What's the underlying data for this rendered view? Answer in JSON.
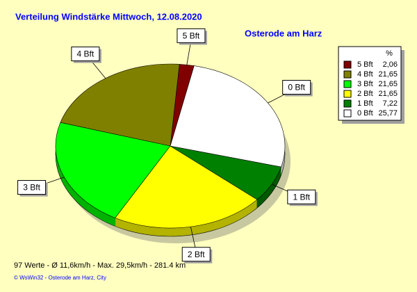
{
  "chart_data": {
    "type": "pie",
    "title": "Verteilung Windstärke  Mittwoch, 12.08.2020",
    "subtitle": "Osterode am Harz",
    "legend_header": "%",
    "categories": [
      "5 Bft",
      "4 Bft",
      "3 Bft",
      "2 Bft",
      "1 Bft",
      "0 Bft"
    ],
    "values": [
      2.06,
      21.65,
      21.65,
      21.65,
      7.22,
      25.77
    ],
    "value_labels": [
      "2,06",
      "21,65",
      "21,65",
      "21,65",
      "7,22",
      "25,77"
    ],
    "colors": [
      "#800000",
      "#808000",
      "#00ff00",
      "#ffff00",
      "#008000",
      "#ffffff"
    ],
    "footer": "97 Werte   -   Ø 11,6km/h  -  Max. 29,5km/h   -   281.4 km",
    "credit": "© WsWin32  -  Osterode am Harz, City"
  }
}
